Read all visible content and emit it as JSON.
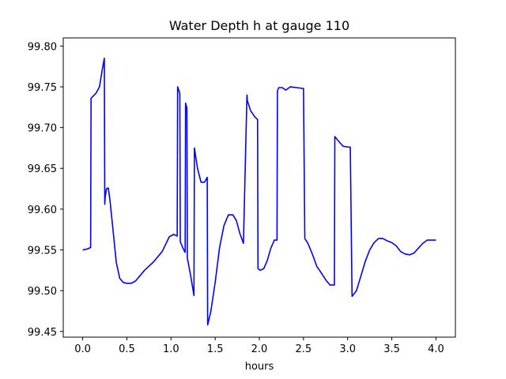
{
  "chart_data": {
    "type": "line",
    "title": "Water Depth h at gauge 110",
    "xlabel": "hours",
    "ylabel": "",
    "xlim": [
      -0.22,
      4.22
    ],
    "ylim": [
      99.443,
      99.81
    ],
    "xticks": [
      0.0,
      0.5,
      1.0,
      1.5,
      2.0,
      2.5,
      3.0,
      3.5,
      4.0
    ],
    "xtick_labels": [
      "0.0",
      "0.5",
      "1.0",
      "1.5",
      "2.0",
      "2.5",
      "3.0",
      "3.5",
      "4.0"
    ],
    "yticks": [
      99.45,
      99.5,
      99.55,
      99.6,
      99.65,
      99.7,
      99.75,
      99.8
    ],
    "ytick_labels": [
      "99.45",
      "99.50",
      "99.55",
      "99.60",
      "99.65",
      "99.70",
      "99.75",
      "99.80"
    ],
    "grid": false,
    "legend": "none",
    "series": [
      {
        "color": "#0000ff",
        "x": [
          0.0,
          0.05,
          0.09,
          0.095,
          0.15,
          0.19,
          0.22,
          0.245,
          0.25,
          0.255,
          0.27,
          0.29,
          0.31,
          0.34,
          0.38,
          0.42,
          0.46,
          0.5,
          0.55,
          0.6,
          0.7,
          0.8,
          0.9,
          0.98,
          1.03,
          1.07,
          1.075,
          1.1,
          1.105,
          1.14,
          1.16,
          1.165,
          1.18,
          1.185,
          1.22,
          1.26,
          1.265,
          1.3,
          1.34,
          1.38,
          1.41,
          1.415,
          1.45,
          1.5,
          1.55,
          1.6,
          1.65,
          1.7,
          1.74,
          1.78,
          1.82,
          1.86,
          1.865,
          1.9,
          1.95,
          1.98,
          1.985,
          2.01,
          2.05,
          2.09,
          2.13,
          2.17,
          2.2,
          2.205,
          2.22,
          2.26,
          2.3,
          2.35,
          2.42,
          2.5,
          2.515,
          2.55,
          2.6,
          2.65,
          2.7,
          2.76,
          2.8,
          2.85,
          2.855,
          2.9,
          2.95,
          3.02,
          3.03,
          3.05,
          3.1,
          3.15,
          3.2,
          3.25,
          3.3,
          3.35,
          3.4,
          3.45,
          3.5,
          3.55,
          3.6,
          3.65,
          3.7,
          3.75,
          3.8,
          3.85,
          3.9,
          3.95,
          4.0
        ],
        "y": [
          99.55,
          99.551,
          99.553,
          99.736,
          99.742,
          99.75,
          99.77,
          99.785,
          99.606,
          99.615,
          99.625,
          99.626,
          99.61,
          99.578,
          99.535,
          99.515,
          99.51,
          99.509,
          99.509,
          99.512,
          99.525,
          99.535,
          99.548,
          99.566,
          99.569,
          99.567,
          99.75,
          99.742,
          99.56,
          99.551,
          99.547,
          99.73,
          99.724,
          99.54,
          99.52,
          99.494,
          99.675,
          99.65,
          99.633,
          99.633,
          99.639,
          99.458,
          99.474,
          99.51,
          99.553,
          99.58,
          99.593,
          99.593,
          99.586,
          99.57,
          99.558,
          99.74,
          99.733,
          99.721,
          99.713,
          99.71,
          99.527,
          99.525,
          99.527,
          99.537,
          99.552,
          99.562,
          99.562,
          99.745,
          99.749,
          99.749,
          99.746,
          99.75,
          99.749,
          99.748,
          99.564,
          99.558,
          99.545,
          99.53,
          99.522,
          99.512,
          99.507,
          99.507,
          99.689,
          99.683,
          99.677,
          99.676,
          99.676,
          99.493,
          99.5,
          99.518,
          99.536,
          99.55,
          99.559,
          99.564,
          99.564,
          99.561,
          99.559,
          99.555,
          99.548,
          99.545,
          99.544,
          99.546,
          99.552,
          99.558,
          99.562,
          99.562,
          99.562
        ]
      }
    ]
  }
}
